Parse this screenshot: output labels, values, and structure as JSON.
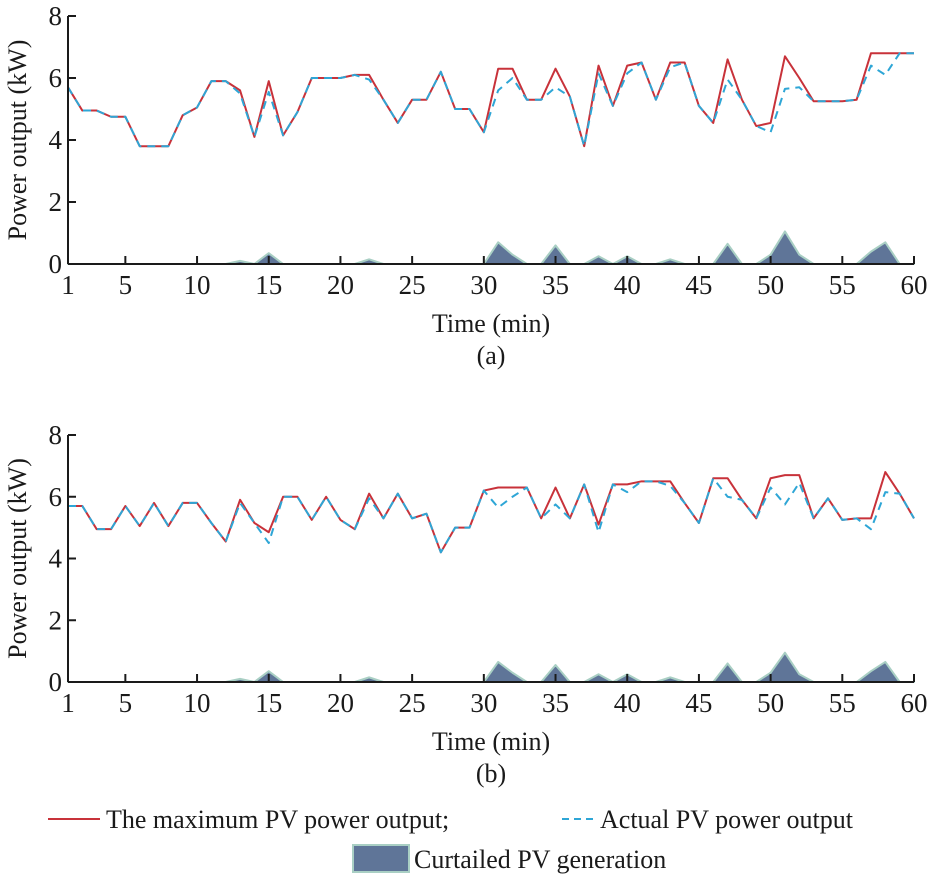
{
  "colors": {
    "max_line": "#c8323a",
    "actual_line": "#2ea6d6",
    "curtailed_fill": "#5f7598",
    "curtailed_edge": "#a9cfc4",
    "axis": "#1a1a1a"
  },
  "legend": {
    "max_label": "The maximum PV power output;",
    "actual_label": "Actual PV power output",
    "curtailed_label": "Curtailed PV generation"
  },
  "chart_data": [
    {
      "type": "line",
      "panel_label": "(a)",
      "title": "",
      "xlabel": "Time (min)",
      "ylabel": "Power output (kW)",
      "xlim": [
        1,
        60
      ],
      "ylim": [
        0,
        8
      ],
      "xticks": [
        1,
        5,
        10,
        15,
        20,
        25,
        30,
        35,
        40,
        45,
        50,
        55,
        60
      ],
      "yticks": [
        0,
        2,
        4,
        6,
        8
      ],
      "grid": false,
      "x": [
        1,
        2,
        3,
        4,
        5,
        6,
        7,
        8,
        9,
        10,
        11,
        12,
        13,
        14,
        15,
        16,
        17,
        18,
        19,
        20,
        21,
        22,
        23,
        24,
        25,
        26,
        27,
        28,
        29,
        30,
        31,
        32,
        33,
        34,
        35,
        36,
        37,
        38,
        39,
        40,
        41,
        42,
        43,
        44,
        45,
        46,
        47,
        48,
        49,
        50,
        51,
        52,
        53,
        54,
        55,
        56,
        57,
        58,
        59,
        60
      ],
      "series": [
        {
          "name": "The maximum PV power output",
          "style": "solid",
          "values": [
            5.7,
            4.95,
            4.95,
            4.75,
            4.75,
            3.8,
            3.8,
            3.8,
            4.8,
            5.05,
            5.9,
            5.9,
            5.6,
            4.1,
            5.9,
            4.15,
            4.9,
            6.0,
            6.0,
            6.0,
            6.1,
            6.1,
            5.3,
            4.55,
            5.3,
            5.3,
            6.2,
            5.0,
            5.0,
            4.25,
            6.3,
            6.3,
            5.3,
            5.3,
            6.3,
            5.4,
            3.8,
            6.4,
            5.1,
            6.4,
            6.5,
            5.3,
            6.5,
            6.5,
            5.1,
            4.55,
            6.6,
            5.3,
            4.45,
            4.55,
            6.7,
            6.0,
            5.25,
            5.25,
            5.25,
            5.3,
            6.8,
            6.8,
            6.8,
            6.8
          ]
        },
        {
          "name": "Actual PV power output",
          "style": "dashed",
          "values": [
            5.7,
            4.95,
            4.95,
            4.75,
            4.75,
            3.8,
            3.8,
            3.8,
            4.8,
            5.05,
            5.9,
            5.9,
            5.5,
            4.1,
            5.55,
            4.15,
            4.9,
            6.0,
            6.0,
            6.0,
            6.1,
            5.95,
            5.3,
            4.55,
            5.3,
            5.3,
            6.2,
            5.0,
            5.0,
            4.25,
            5.6,
            6.0,
            5.3,
            5.3,
            5.7,
            5.4,
            3.8,
            6.15,
            5.1,
            6.15,
            6.5,
            5.3,
            6.35,
            6.5,
            5.1,
            4.55,
            5.95,
            5.3,
            4.45,
            4.25,
            5.65,
            5.7,
            5.25,
            5.25,
            5.25,
            5.3,
            6.4,
            6.1,
            6.8,
            6.8
          ]
        },
        {
          "name": "Curtailed PV generation",
          "style": "area",
          "values": [
            0,
            0,
            0,
            0,
            0,
            0,
            0,
            0,
            0,
            0,
            0,
            0,
            0.1,
            0,
            0.35,
            0,
            0,
            0,
            0,
            0,
            0,
            0.15,
            0,
            0,
            0,
            0,
            0,
            0,
            0,
            0,
            0.7,
            0.3,
            0,
            0,
            0.6,
            0,
            0,
            0.25,
            0,
            0.25,
            0,
            0,
            0.15,
            0,
            0,
            0,
            0.65,
            0,
            0,
            0.3,
            1.05,
            0.3,
            0,
            0,
            0,
            0,
            0.4,
            0.7,
            0,
            0
          ]
        }
      ]
    },
    {
      "type": "line",
      "panel_label": "(b)",
      "title": "",
      "xlabel": "Time (min)",
      "ylabel": "Power output (kW)",
      "xlim": [
        1,
        60
      ],
      "ylim": [
        0,
        8
      ],
      "xticks": [
        1,
        5,
        10,
        15,
        20,
        25,
        30,
        35,
        40,
        45,
        50,
        55,
        60
      ],
      "yticks": [
        0,
        2,
        4,
        6,
        8
      ],
      "grid": false,
      "x": [
        1,
        2,
        3,
        4,
        5,
        6,
        7,
        8,
        9,
        10,
        11,
        12,
        13,
        14,
        15,
        16,
        17,
        18,
        19,
        20,
        21,
        22,
        23,
        24,
        25,
        26,
        27,
        28,
        29,
        30,
        31,
        32,
        33,
        34,
        35,
        36,
        37,
        38,
        39,
        40,
        41,
        42,
        43,
        44,
        45,
        46,
        47,
        48,
        49,
        50,
        51,
        52,
        53,
        54,
        55,
        56,
        57,
        58,
        59,
        60
      ],
      "series": [
        {
          "name": "The maximum PV power output",
          "style": "solid",
          "values": [
            5.7,
            5.7,
            4.95,
            4.95,
            5.7,
            5.05,
            5.8,
            5.05,
            5.8,
            5.8,
            5.15,
            4.55,
            5.9,
            5.15,
            4.85,
            6.0,
            6.0,
            5.25,
            6.0,
            5.25,
            4.95,
            6.1,
            5.3,
            6.1,
            5.3,
            5.45,
            4.2,
            5.0,
            5.0,
            6.2,
            6.3,
            6.3,
            6.3,
            5.3,
            6.3,
            5.3,
            6.4,
            5.1,
            6.4,
            6.4,
            6.5,
            6.5,
            6.5,
            5.8,
            5.15,
            6.6,
            6.6,
            5.9,
            5.3,
            6.6,
            6.7,
            6.7,
            5.3,
            5.95,
            5.25,
            5.3,
            5.3,
            6.8,
            6.1,
            5.3
          ]
        },
        {
          "name": "Actual PV power output",
          "style": "dashed",
          "values": [
            5.7,
            5.7,
            4.95,
            4.95,
            5.7,
            5.05,
            5.8,
            5.05,
            5.8,
            5.8,
            5.15,
            4.55,
            5.8,
            5.15,
            4.5,
            6.0,
            6.0,
            5.25,
            6.0,
            5.25,
            4.95,
            5.95,
            5.3,
            6.1,
            5.3,
            5.45,
            4.2,
            5.0,
            5.0,
            6.2,
            5.65,
            6.0,
            6.3,
            5.3,
            5.75,
            5.3,
            6.4,
            4.85,
            6.4,
            6.15,
            6.5,
            6.5,
            6.35,
            5.8,
            5.15,
            6.6,
            6.0,
            5.9,
            5.3,
            6.3,
            5.75,
            6.45,
            5.3,
            5.95,
            5.25,
            5.3,
            4.95,
            6.15,
            6.1,
            5.3
          ]
        },
        {
          "name": "Curtailed PV generation",
          "style": "area",
          "values": [
            0,
            0,
            0,
            0,
            0,
            0,
            0,
            0,
            0,
            0,
            0,
            0,
            0.1,
            0,
            0.35,
            0,
            0,
            0,
            0,
            0,
            0,
            0.15,
            0,
            0,
            0,
            0,
            0,
            0,
            0,
            0,
            0.65,
            0.3,
            0,
            0,
            0.55,
            0,
            0,
            0.25,
            0,
            0.25,
            0,
            0,
            0.15,
            0,
            0,
            0,
            0.6,
            0,
            0,
            0.3,
            0.95,
            0.25,
            0,
            0,
            0,
            0,
            0.35,
            0.65,
            0,
            0
          ]
        }
      ]
    }
  ]
}
